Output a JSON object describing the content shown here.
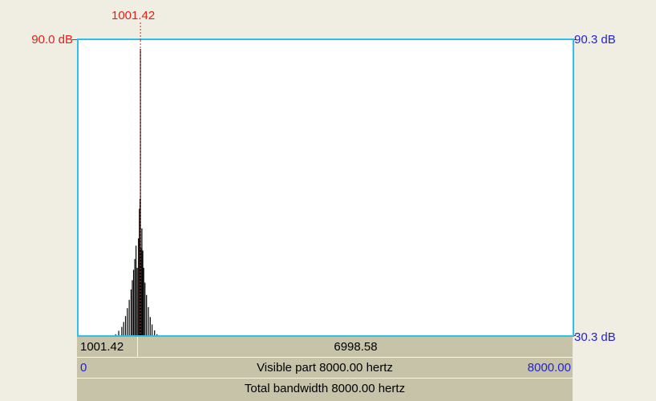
{
  "cursor": {
    "frequency_label": "1001.42",
    "frequency_hz": 1001.42
  },
  "axes": {
    "left_top_db": "90.0 dB",
    "right_top_db": "90.3 dB",
    "right_bottom_db": "30.3 dB"
  },
  "range_bar": {
    "left_value": "1001.42",
    "right_value": "6998.58"
  },
  "visible_bar": {
    "start": "0",
    "label": "Visible part 8000.00 hertz",
    "end": "8000.00"
  },
  "total_bar": {
    "label": "Total bandwidth 8000.00 hertz"
  },
  "colors": {
    "cursor": "#e0201a",
    "axis_right": "#1f1fd6",
    "plot_border": "#2ec0e6",
    "spectrum": "#000000",
    "background": "#f0eee3",
    "bar": "#c6c3a9"
  },
  "chart_data": {
    "type": "line",
    "xlim": [
      0,
      8000
    ],
    "ylim_db": [
      30.3,
      90.3
    ],
    "x_hz": [
      600,
      650,
      700,
      730,
      760,
      790,
      820,
      850,
      870,
      890,
      910,
      930,
      950,
      970,
      985,
      995,
      1001.42,
      1010,
      1025,
      1040,
      1055,
      1075,
      1100,
      1130,
      1160,
      1190,
      1230,
      1270
    ],
    "y_db": [
      30.5,
      31.2,
      32.0,
      33.0,
      34.2,
      35.8,
      37.5,
      39.6,
      41.5,
      43.6,
      45.8,
      48.5,
      44.0,
      50.0,
      56.0,
      58.0,
      88.5,
      48.0,
      52.0,
      47.5,
      44.0,
      41.0,
      38.5,
      36.0,
      34.0,
      32.5,
      31.3,
      30.5
    ]
  }
}
